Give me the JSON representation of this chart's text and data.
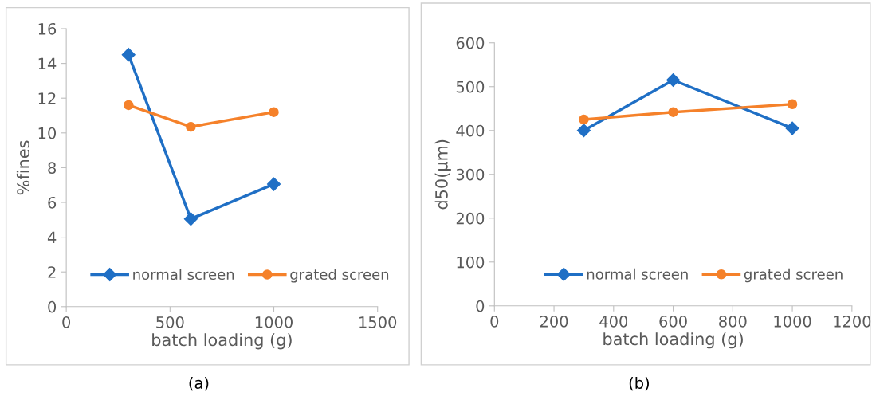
{
  "chart_data": [
    {
      "type": "line",
      "xlabel": "batch loading (g)",
      "ylabel": "%fines",
      "x": [
        300,
        600,
        1000
      ],
      "series": [
        {
          "name": "normal screen",
          "color": "#1f6fc5",
          "marker": "diamond",
          "values": [
            14.5,
            5.05,
            7.05
          ]
        },
        {
          "name": "grated screen",
          "color": "#f5812a",
          "marker": "circle",
          "values": [
            11.6,
            10.35,
            11.2
          ]
        }
      ],
      "xlim": [
        0,
        1500
      ],
      "xticks": [
        0,
        500,
        1000,
        1500
      ],
      "ylim": [
        0,
        16
      ],
      "yticks": [
        0,
        2,
        4,
        6,
        8,
        10,
        12,
        14,
        16
      ],
      "grid": false,
      "legend": "bottom",
      "annotations": [
        "(a)"
      ]
    },
    {
      "type": "line",
      "xlabel": "batch loading (g)",
      "ylabel": "d50(μm)",
      "x": [
        300,
        600,
        1000
      ],
      "series": [
        {
          "name": "normal screen",
          "color": "#1f6fc5",
          "marker": "diamond",
          "values": [
            400,
            515,
            405
          ]
        },
        {
          "name": "grated screen",
          "color": "#f5812a",
          "marker": "circle",
          "values": [
            425,
            442,
            460
          ]
        }
      ],
      "xlim": [
        0,
        1200
      ],
      "xticks": [
        0,
        200,
        400,
        600,
        800,
        1000,
        1200
      ],
      "ylim": [
        0,
        600
      ],
      "yticks": [
        0,
        100,
        200,
        300,
        400,
        500,
        600
      ],
      "grid": false,
      "legend": "bottom",
      "annotations": [
        "(b)"
      ]
    }
  ]
}
